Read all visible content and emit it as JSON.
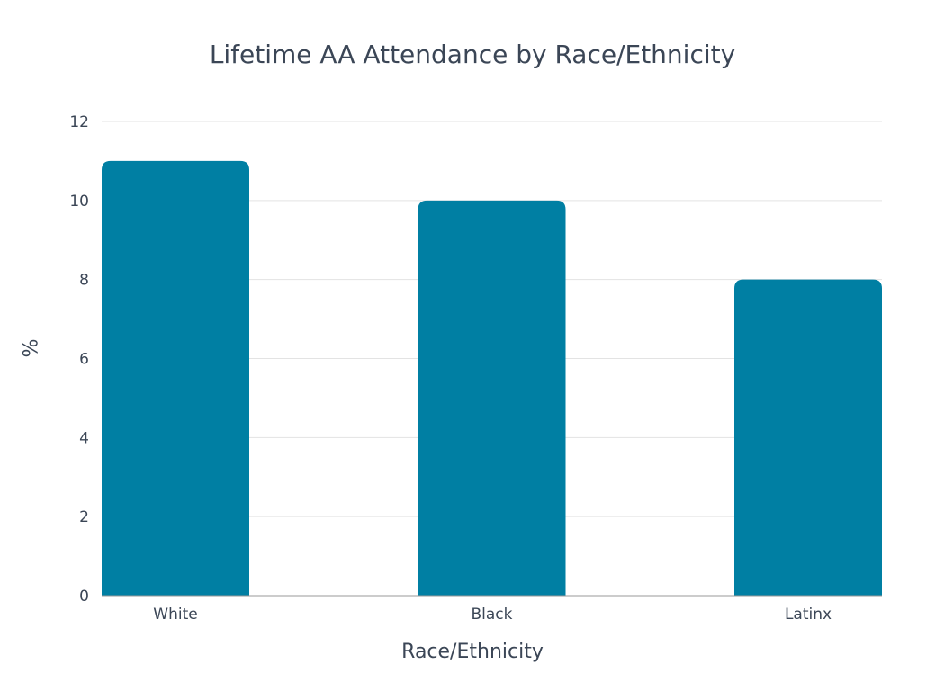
{
  "chart_data": {
    "type": "bar",
    "title": "Lifetime AA Attendance by Race/Ethnicity",
    "xlabel": "Race/Ethnicity",
    "ylabel": "%",
    "categories": [
      "White",
      "Black",
      "Latinx"
    ],
    "values": [
      11,
      10,
      8
    ],
    "ylim": [
      0,
      12
    ],
    "yticks": [
      0,
      2,
      4,
      6,
      8,
      10,
      12
    ],
    "grid": true,
    "legend": "none",
    "bar_color": "#007fa3"
  }
}
